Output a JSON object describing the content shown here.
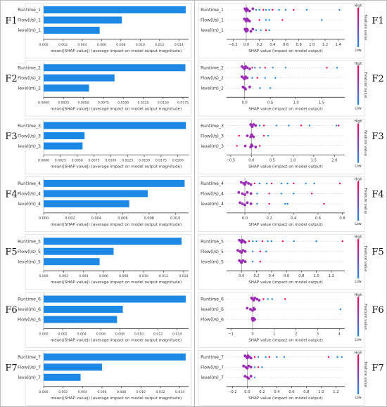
{
  "chart_data": [
    {
      "type": "bar",
      "panel_label": "F1",
      "categories": [
        "Runtime_1",
        "Flow(l/s)_1",
        "level(m)_1"
      ],
      "values": [
        0.0147,
        0.0081,
        0.0058
      ],
      "xlim": [
        0,
        0.015
      ],
      "xticks": [
        "0.000",
        "0.002",
        "0.004",
        "0.006",
        "0.008",
        "0.010",
        "0.012",
        "0.014"
      ],
      "xlabel": "mean(|SHAP value|) (average impact on model output magnitude)"
    },
    {
      "type": "scatter",
      "panel_label": "F1",
      "categories": [
        "Runtime_1",
        "Flow(l/s)_1",
        "level(m)_1"
      ],
      "xlim": [
        -0.3,
        1.5
      ],
      "xticks": [
        "−0.2",
        "0.0",
        "0.2",
        "0.4",
        "0.6",
        "0.8",
        "1.0",
        "1.2",
        "1.4"
      ],
      "xlabel": "SHAP value (impact on model output)",
      "colorbar_label": "Feature value",
      "colorbar_high": "High",
      "colorbar_low": "Low",
      "points": [
        [
          [
            -0.02,
            0
          ],
          [
            -0.01,
            0
          ],
          [
            0,
            0
          ],
          [
            0.01,
            0
          ],
          [
            0.02,
            0
          ],
          [
            0.05,
            0
          ],
          [
            0.1,
            0
          ],
          [
            0.15,
            0
          ],
          [
            0.2,
            0
          ],
          [
            0.26,
            0
          ],
          [
            0.3,
            0
          ],
          [
            0.35,
            0
          ],
          [
            0.4,
            0
          ],
          [
            0.5,
            0
          ],
          [
            0.6,
            0
          ],
          [
            0.72,
            0
          ],
          [
            0.92,
            0
          ],
          [
            1.42,
            0
          ]
        ],
        [
          [
            -0.03,
            1
          ],
          [
            -0.01,
            1
          ],
          [
            0,
            1
          ],
          [
            0.01,
            1
          ],
          [
            0.03,
            1
          ],
          [
            0.05,
            1
          ],
          [
            0.2,
            1
          ],
          [
            0.3,
            1
          ],
          [
            0.35,
            1
          ],
          [
            0.55,
            1
          ],
          [
            1.15,
            1
          ]
        ],
        [
          [
            -0.02,
            2
          ],
          [
            -0.01,
            2
          ],
          [
            0,
            2
          ],
          [
            0.01,
            2
          ],
          [
            0.02,
            2
          ],
          [
            0.07,
            2
          ],
          [
            0.1,
            2
          ],
          [
            0.15,
            2
          ],
          [
            0.22,
            2
          ],
          [
            0.3,
            2
          ],
          [
            0.35,
            2
          ]
        ]
      ]
    },
    {
      "type": "bar",
      "panel_label": "F2",
      "categories": [
        "Runtime_2",
        "Flow(l/s)_2",
        "level(m)_2"
      ],
      "values": [
        0.0178,
        0.0089,
        0.0057
      ],
      "xlim": [
        0,
        0.0182
      ],
      "xticks": [
        "0.0000",
        "0.0025",
        "0.0050",
        "0.0075",
        "0.0100",
        "0.0125",
        "0.0150",
        "0.0175"
      ],
      "xlabel": "mean(|SHAP value|) (average impact on model output magnitude)"
    },
    {
      "type": "scatter",
      "panel_label": "F2",
      "categories": [
        "Runtime_2",
        "Flow(l/s)_2",
        "level(m)_2"
      ],
      "xlim": [
        -0.35,
        1.95
      ],
      "xticks": [
        "0.0",
        "0.5",
        "1.0",
        "1.5"
      ],
      "xlabel": "SHAP value (impact on model output)",
      "colorbar_label": "Feature value",
      "colorbar_high": "High",
      "colorbar_low": "Low",
      "points": [
        [
          [
            -0.05,
            0
          ],
          [
            -0.02,
            0
          ],
          [
            0,
            0
          ],
          [
            0.02,
            0
          ],
          [
            0.05,
            0
          ],
          [
            0.1,
            0
          ],
          [
            0.15,
            0
          ],
          [
            0.2,
            0
          ],
          [
            0.3,
            0
          ],
          [
            0.4,
            0
          ],
          [
            0.55,
            0
          ],
          [
            0.8,
            0
          ],
          [
            1.6,
            0
          ],
          [
            1.8,
            0
          ]
        ],
        [
          [
            -0.05,
            1
          ],
          [
            -0.02,
            1
          ],
          [
            0,
            1
          ],
          [
            0.02,
            1
          ],
          [
            0.05,
            1
          ],
          [
            0.15,
            1
          ],
          [
            0.25,
            1
          ],
          [
            0.4,
            1
          ],
          [
            0.6,
            1
          ]
        ],
        [
          [
            -0.03,
            2
          ],
          [
            0,
            2
          ],
          [
            0.02,
            2
          ],
          [
            0.1,
            2
          ],
          [
            0.3,
            2
          ],
          [
            0.5,
            2
          ]
        ]
      ]
    },
    {
      "type": "bar",
      "panel_label": "F3",
      "categories": [
        "Runtime_3",
        "Flow(l/s)_3",
        "level(m)_3"
      ],
      "values": [
        0.0212,
        0.0061,
        0.0058
      ],
      "xlim": [
        0,
        0.0216
      ],
      "xticks": [
        "0.0000",
        "0.0025",
        "0.0050",
        "0.0075",
        "0.0100",
        "0.0125",
        "0.0150",
        "0.0175",
        "0.0200"
      ],
      "xlabel": "mean(|SHAP value|) (average impact on model output magnitude)"
    },
    {
      "type": "scatter",
      "panel_label": "F3",
      "categories": [
        "Runtime_3",
        "Flow(l/s)_3",
        "level(m)_3"
      ],
      "xlim": [
        -0.6,
        2.25
      ],
      "xticks": [
        "−0.5",
        "0.0",
        "0.5",
        "1.0",
        "1.5",
        "2.0"
      ],
      "xlabel": "SHAP value (impact on model output)",
      "colorbar_label": "Feature value",
      "colorbar_high": "High",
      "colorbar_low": "Low",
      "points": [
        [
          [
            -0.02,
            0
          ],
          [
            0,
            0
          ],
          [
            0.02,
            0
          ],
          [
            0.05,
            0
          ],
          [
            0.1,
            0
          ],
          [
            0.2,
            0
          ],
          [
            0.3,
            0
          ],
          [
            0.6,
            0
          ],
          [
            0.9,
            0
          ],
          [
            1.2,
            0
          ],
          [
            1.4,
            0
          ],
          [
            2.05,
            0
          ],
          [
            2.1,
            0
          ]
        ],
        [
          [
            -0.3,
            1
          ],
          [
            -0.1,
            1
          ],
          [
            -0.02,
            1
          ],
          [
            0,
            1
          ],
          [
            0.02,
            1
          ],
          [
            0.05,
            1
          ],
          [
            0.3,
            1
          ],
          [
            0.4,
            1
          ]
        ],
        [
          [
            -0.35,
            2
          ],
          [
            -0.15,
            2
          ],
          [
            -0.02,
            2
          ],
          [
            0,
            2
          ],
          [
            0.02,
            2
          ],
          [
            0.1,
            2
          ],
          [
            0.2,
            2
          ]
        ]
      ]
    },
    {
      "type": "bar",
      "panel_label": "F4",
      "categories": [
        "Runtime_4",
        "Flow(l/s)_4",
        "level(m)_4"
      ],
      "values": [
        0.0107,
        0.0079,
        0.0065
      ],
      "xlim": [
        0,
        0.011
      ],
      "xticks": [
        "0.000",
        "0.002",
        "0.004",
        "0.006",
        "0.008",
        "0.010"
      ],
      "xlabel": "mean(|SHAP value|) (average impact on model output magnitude)"
    },
    {
      "type": "scatter",
      "panel_label": "F4",
      "categories": [
        "Runtime_4",
        "Flow(l/s)_4",
        "level(m)_4"
      ],
      "xlim": [
        -0.15,
        0.82
      ],
      "xticks": [
        "0.0",
        "0.2",
        "0.4",
        "0.6",
        "0.8"
      ],
      "xlabel": "SHAP value (impact on model output)",
      "colorbar_label": "Feature value",
      "colorbar_high": "High",
      "colorbar_low": "Low",
      "points": [
        [
          [
            -0.03,
            0
          ],
          [
            -0.01,
            0
          ],
          [
            0,
            0
          ],
          [
            0.01,
            0
          ],
          [
            0.03,
            0
          ],
          [
            0.05,
            0
          ],
          [
            0.08,
            0
          ],
          [
            0.12,
            0
          ],
          [
            0.18,
            0
          ],
          [
            0.22,
            0
          ],
          [
            0.3,
            0
          ],
          [
            0.35,
            0
          ],
          [
            0.4,
            0
          ],
          [
            0.5,
            0
          ],
          [
            0.57,
            0
          ],
          [
            0.78,
            0
          ]
        ],
        [
          [
            -0.05,
            1
          ],
          [
            -0.02,
            1
          ],
          [
            0,
            1
          ],
          [
            0.02,
            1
          ],
          [
            0.05,
            1
          ],
          [
            0.1,
            1
          ],
          [
            0.2,
            1
          ],
          [
            0.3,
            1
          ],
          [
            0.4,
            1
          ],
          [
            0.55,
            1
          ]
        ],
        [
          [
            -0.04,
            2
          ],
          [
            -0.02,
            2
          ],
          [
            0,
            2
          ],
          [
            0.02,
            2
          ],
          [
            0.05,
            2
          ],
          [
            0.1,
            2
          ],
          [
            0.2,
            2
          ],
          [
            0.33,
            2
          ],
          [
            0.35,
            2
          ],
          [
            0.65,
            2
          ]
        ]
      ]
    },
    {
      "type": "bar",
      "panel_label": "F5",
      "categories": [
        "Runtime_5",
        "Flow(l/s)_5",
        "level(m)_5"
      ],
      "values": [
        0.0138,
        0.007,
        0.0056
      ],
      "xlim": [
        0,
        0.0145
      ],
      "xticks": [
        "0.000",
        "0.002",
        "0.004",
        "0.006",
        "0.008",
        "0.010",
        "0.012",
        "0.014"
      ],
      "xlabel": "mean(|SHAP value|) (average impact on model output magnitude)"
    },
    {
      "type": "scatter",
      "panel_label": "F5",
      "categories": [
        "Runtime_5",
        "Flow(l/s)_5",
        "level(m)_5"
      ],
      "xlim": [
        -0.2,
        1.38
      ],
      "xticks": [
        "0.0",
        "0.2",
        "0.4",
        "0.6",
        "0.8",
        "1.0",
        "1.2"
      ],
      "xlabel": "SHAP value (impact on model output)",
      "colorbar_label": "Feature value",
      "colorbar_high": "High",
      "colorbar_low": "Low",
      "points": [
        [
          [
            -0.03,
            0
          ],
          [
            -0.01,
            0
          ],
          [
            0,
            0
          ],
          [
            0.01,
            0
          ],
          [
            0.03,
            0
          ],
          [
            0.05,
            0
          ],
          [
            0.1,
            0
          ],
          [
            0.15,
            0
          ],
          [
            0.2,
            0
          ],
          [
            0.28,
            0
          ],
          [
            0.35,
            0
          ],
          [
            0.4,
            0
          ],
          [
            0.55,
            0
          ],
          [
            0.7,
            0
          ],
          [
            1.0,
            0
          ],
          [
            1.35,
            0
          ]
        ],
        [
          [
            -0.05,
            1
          ],
          [
            -0.02,
            1
          ],
          [
            0,
            1
          ],
          [
            0.02,
            1
          ],
          [
            0.05,
            1
          ],
          [
            0.15,
            1
          ],
          [
            0.25,
            1
          ],
          [
            0.33,
            1
          ]
        ],
        [
          [
            -0.03,
            2
          ],
          [
            -0.01,
            2
          ],
          [
            0,
            2
          ],
          [
            0.02,
            2
          ],
          [
            0.05,
            2
          ],
          [
            0.15,
            2
          ],
          [
            0.25,
            2
          ]
        ]
      ]
    },
    {
      "type": "bar",
      "panel_label": "F6",
      "categories": [
        "Runtime_6",
        "level(m)_6",
        "Flow(l/s)_6"
      ],
      "values": [
        0.0149,
        0.0083,
        0.0077
      ],
      "xlim": [
        0,
        0.0152
      ],
      "xticks": [
        "0.000",
        "0.002",
        "0.004",
        "0.006",
        "0.008",
        "0.010",
        "0.012",
        "0.014"
      ],
      "xlabel": "mean(|SHAP value|) (average impact on model output magnitude)"
    },
    {
      "type": "scatter",
      "panel_label": "F6",
      "categories": [
        "Runtime_6",
        "level(m)_6",
        "Flow(l/s)_6"
      ],
      "xlim": [
        -1.2,
        4.25
      ],
      "xticks": [
        "−1",
        "0",
        "1",
        "2",
        "3",
        "4"
      ],
      "xlabel": "SHAP value (impact on model output)",
      "colorbar_label": "Feature value",
      "colorbar_high": "High",
      "colorbar_low": "Low",
      "points": [
        [
          [
            -0.05,
            0
          ],
          [
            0,
            0
          ],
          [
            0.05,
            0
          ],
          [
            0.1,
            0
          ],
          [
            0.2,
            0
          ],
          [
            0.3,
            0
          ],
          [
            0.5,
            0
          ],
          [
            0.7,
            0
          ],
          [
            0.9,
            0
          ],
          [
            1.5,
            0
          ]
        ],
        [
          [
            -0.25,
            1
          ],
          [
            -0.1,
            1
          ],
          [
            0,
            1
          ],
          [
            0.05,
            1
          ],
          [
            0.1,
            1
          ],
          [
            4.05,
            1
          ]
        ],
        [
          [
            -0.02,
            2
          ],
          [
            0,
            2
          ],
          [
            0.02,
            2
          ],
          [
            0.05,
            2
          ],
          [
            0.1,
            2
          ]
        ]
      ]
    },
    {
      "type": "bar",
      "panel_label": "F7",
      "categories": [
        "Runtime_7",
        "Flow(l/s)_7",
        "level(m)_7"
      ],
      "values": [
        0.0146,
        0.006,
        0.0038
      ],
      "xlim": [
        0,
        0.0149
      ],
      "xticks": [
        "0.000",
        "0.002",
        "0.004",
        "0.006",
        "0.008",
        "0.010",
        "0.012",
        "0.014"
      ],
      "xlabel": "mean(|SHAP value|) (average impact on model output magnitude)"
    },
    {
      "type": "scatter",
      "panel_label": "F7",
      "categories": [
        "Runtime_7",
        "Flow(l/s)_7",
        "level(m)_7"
      ],
      "xlim": [
        -0.28,
        1.32
      ],
      "xticks": [
        "−0.2",
        "0.0",
        "0.2",
        "0.4",
        "0.6",
        "0.8",
        "1.0",
        "1.2"
      ],
      "xlabel": "SHAP value (impact on model output)",
      "colorbar_label": "Feature value",
      "colorbar_high": "High",
      "colorbar_low": "Low",
      "points": [
        [
          [
            -0.03,
            0
          ],
          [
            -0.01,
            0
          ],
          [
            0,
            0
          ],
          [
            0.01,
            0
          ],
          [
            0.03,
            0
          ],
          [
            0.05,
            0
          ],
          [
            0.1,
            0
          ],
          [
            0.15,
            0
          ],
          [
            0.25,
            0
          ],
          [
            0.3,
            0
          ],
          [
            0.4,
            0
          ],
          [
            0.5,
            0
          ],
          [
            1.1,
            0
          ],
          [
            1.22,
            0
          ],
          [
            1.28,
            0
          ]
        ],
        [
          [
            -0.05,
            1
          ],
          [
            -0.02,
            1
          ],
          [
            0,
            1
          ],
          [
            0.02,
            1
          ],
          [
            0.05,
            1
          ],
          [
            0.1,
            1
          ],
          [
            0.15,
            1
          ],
          [
            0.2,
            1
          ]
        ],
        [
          [
            -0.03,
            2
          ],
          [
            0,
            2
          ],
          [
            0.02,
            2
          ],
          [
            0.05,
            2
          ],
          [
            0.1,
            2
          ]
        ]
      ]
    }
  ]
}
